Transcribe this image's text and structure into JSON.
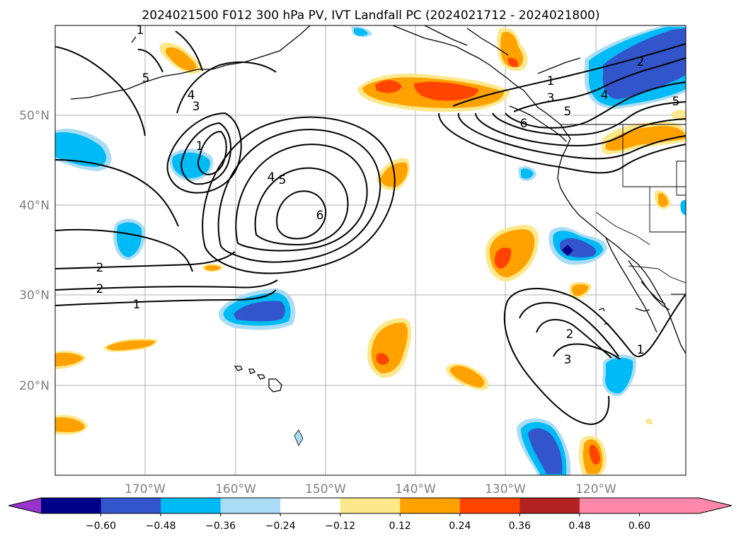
{
  "title": "2024021500 F012 300 hPa PV, IVT Landfall PC (2024021712 - 2024021800)",
  "lat_labels": [
    "50°N",
    "40°N",
    "30°N",
    "20°N"
  ],
  "lon_labels": [
    "170°W",
    "160°W",
    "150°W",
    "140°W",
    "130°W",
    "120°W"
  ],
  "colorbar": {
    "ticks": [
      "−0.60",
      "−0.48",
      "−0.36",
      "−0.24",
      "−0.12",
      "0.12",
      "0.24",
      "0.36",
      "0.48",
      "0.60"
    ],
    "colors": [
      "#9933cc",
      "#000088",
      "#3355cc",
      "#00bbf5",
      "#aaddf5",
      "#ffffff",
      "#fde88c",
      "#ffa200",
      "#ff4400",
      "#b22222",
      "#ff88aa"
    ]
  },
  "contour_labels": [
    "1",
    "2",
    "2",
    "1",
    "3",
    "4",
    "5",
    "1",
    "4",
    "5",
    "6",
    "1",
    "3",
    "4",
    "5",
    "6",
    "2",
    "3",
    "1",
    "5",
    "2"
  ],
  "colors": {
    "grid": "#b0b0b0",
    "tick_label": "#808080",
    "coast": "#000000",
    "contour": "#000000"
  }
}
